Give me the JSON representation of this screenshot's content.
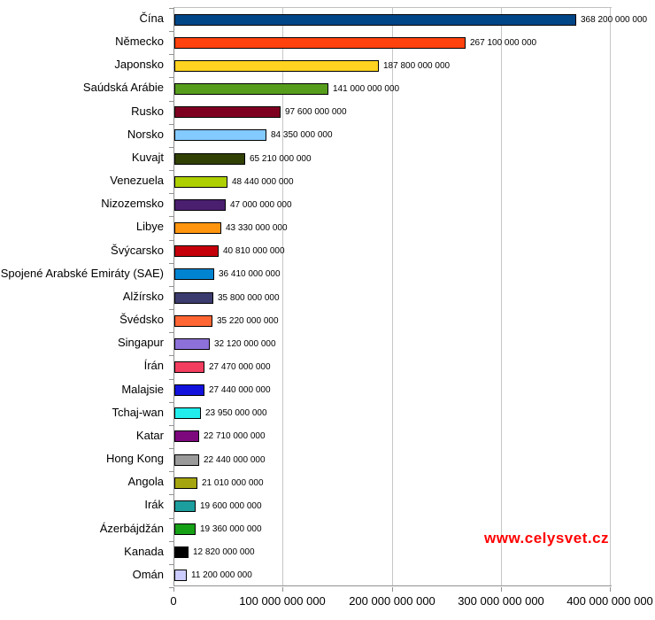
{
  "watermark": {
    "text": "www.celysvet.cz",
    "color": "#ff0000"
  },
  "style": {
    "background": "#ffffff",
    "gridline_color": "#c6c6c6",
    "axis_color": "#919191",
    "bar_border_color": "#000000",
    "text_color": "#000000"
  },
  "chart_data": {
    "type": "bar",
    "orientation": "horizontal",
    "title": "",
    "xlabel": "",
    "ylabel": "",
    "grid": true,
    "xlim": [
      0,
      400000000000
    ],
    "x_ticks": [
      {
        "value": 0,
        "label": "0"
      },
      {
        "value": 100000000000,
        "label": "100 000 000 000"
      },
      {
        "value": 200000000000,
        "label": "200 000 000 000"
      },
      {
        "value": 300000000000,
        "label": "300 000 000 000"
      },
      {
        "value": 400000000000,
        "label": "400 000 000 000"
      }
    ],
    "categories": [
      "Čína",
      "Německo",
      "Japonsko",
      "Saúdská Arábie",
      "Rusko",
      "Norsko",
      "Kuvajt",
      "Venezuela",
      "Nizozemsko",
      "Libye",
      "Švýcarsko",
      "Spojené Arabské Emiráty (SAE)",
      "Alžírsko",
      "Švédsko",
      "Singapur",
      "Írán",
      "Malajsie",
      "Tchaj-wan",
      "Katar",
      "Hong Kong",
      "Angola",
      "Irák",
      "Ázerbájdžán",
      "Kanada",
      "Omán"
    ],
    "values": [
      368200000000,
      267100000000,
      187800000000,
      141000000000,
      97600000000,
      84350000000,
      65210000000,
      48440000000,
      47000000000,
      43330000000,
      40810000000,
      36410000000,
      35800000000,
      35220000000,
      32120000000,
      27470000000,
      27440000000,
      23950000000,
      22710000000,
      22440000000,
      21010000000,
      19600000000,
      19360000000,
      12820000000,
      11200000000
    ],
    "value_labels": [
      "368 200 000 000",
      "267 100 000 000",
      "187 800 000 000",
      "141 000 000 000",
      "97 600 000 000",
      "84 350 000 000",
      "65 210 000 000",
      "48 440 000 000",
      "47 000 000 000",
      "43 330 000 000",
      "40 810 000 000",
      "36 410 000 000",
      "35 800 000 000",
      "35 220 000 000",
      "32 120 000 000",
      "27 470 000 000",
      "27 440 000 000",
      "23 950 000 000",
      "22 710 000 000",
      "22 440 000 000",
      "21 010 000 000",
      "19 600 000 000",
      "19 360 000 000",
      "12 820 000 000",
      "11 200 000 000"
    ],
    "bar_colors": [
      "#004586",
      "#FF420E",
      "#FFD320",
      "#579D1C",
      "#7E0021",
      "#83CAFF",
      "#314004",
      "#AECF00",
      "#4B1F6F",
      "#FF950E",
      "#C5000B",
      "#0084D1",
      "#3B3B6D",
      "#FF6633",
      "#8D70D8",
      "#F23D5F",
      "#1212DC",
      "#22EDED",
      "#7D077D",
      "#9A9A9A",
      "#A5A50F",
      "#1D9E9E",
      "#15A015",
      "#000000",
      "#CCCCFF"
    ]
  }
}
